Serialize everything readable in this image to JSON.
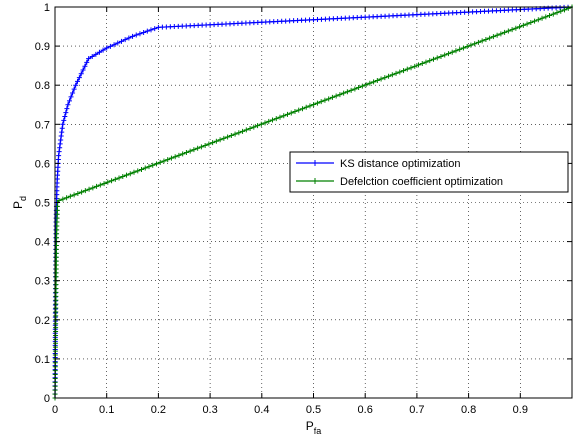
{
  "chart_data": {
    "type": "line",
    "xlabel": "P",
    "xlabel_sub": "fa",
    "ylabel": "P",
    "ylabel_sub": "d",
    "xlim": [
      0,
      1
    ],
    "ylim": [
      0,
      1
    ],
    "grid": true,
    "legend_position": "center-right",
    "x_ticks": [
      0,
      0.1,
      0.2,
      0.3,
      0.4,
      0.5,
      0.6,
      0.7,
      0.8,
      0.9
    ],
    "x_tick_labels": [
      "0",
      "0.1",
      "0.2",
      "0.3",
      "0.4",
      "0.5",
      "0.6",
      "0.7",
      "0.8",
      "0.9"
    ],
    "y_ticks": [
      0,
      0.1,
      0.2,
      0.3,
      0.4,
      0.5,
      0.6,
      0.7,
      0.8,
      0.9,
      1
    ],
    "y_tick_labels": [
      "0",
      "0.1",
      "0.2",
      "0.3",
      "0.4",
      "0.5",
      "0.6",
      "0.7",
      "0.8",
      "0.9",
      "1"
    ],
    "series": [
      {
        "name": "KS distance optimization",
        "color": "#0000ff",
        "marker": "plus",
        "points": [
          [
            0,
            0
          ],
          [
            0.001,
            0.3
          ],
          [
            0.002,
            0.45
          ],
          [
            0.004,
            0.55
          ],
          [
            0.007,
            0.62
          ],
          [
            0.015,
            0.7
          ],
          [
            0.025,
            0.75
          ],
          [
            0.04,
            0.8
          ],
          [
            0.065,
            0.868
          ],
          [
            0.1,
            0.895
          ],
          [
            0.15,
            0.925
          ],
          [
            0.2,
            0.948
          ],
          [
            1.0,
            1.0
          ]
        ]
      },
      {
        "name": "Defelction coefficient optimization",
        "color": "#008000",
        "marker": "plus",
        "points": [
          [
            0,
            0
          ],
          [
            0.001,
            0.15
          ],
          [
            0.002,
            0.3
          ],
          [
            0.003,
            0.42
          ],
          [
            0.005,
            0.5
          ],
          [
            0.008,
            0.505
          ],
          [
            1.0,
            1.0
          ]
        ]
      }
    ]
  }
}
